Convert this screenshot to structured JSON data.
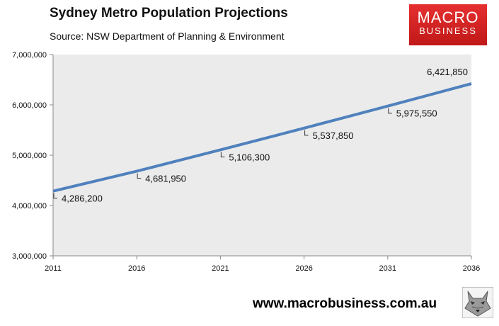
{
  "header": {
    "title": "Sydney Metro Population Projections",
    "source": "Source: NSW Department of Planning & Environment"
  },
  "logo": {
    "line1": "MACRO",
    "line2": "BUSINESS"
  },
  "footer": {
    "url": "www.macrobusiness.com.au"
  },
  "colors": {
    "line": "#4f81bd",
    "plot_bg": "#ebebeb",
    "logo": "#d42020"
  },
  "chart_data": {
    "type": "line",
    "title": "Sydney Metro Population Projections",
    "xlabel": "",
    "ylabel": "",
    "x": [
      2011,
      2016,
      2021,
      2026,
      2031,
      2036
    ],
    "x_tick_labels": [
      "2011",
      "2016",
      "2021",
      "2026",
      "2031",
      "2036"
    ],
    "ylim": [
      3000000,
      7000000
    ],
    "y_ticks": [
      3000000,
      4000000,
      5000000,
      6000000,
      7000000
    ],
    "y_tick_labels": [
      "3,000,000",
      "4,000,000",
      "5,000,000",
      "6,000,000",
      "7,000,000"
    ],
    "series": [
      {
        "name": "Sydney Metro Population",
        "values": [
          4286200,
          4681950,
          5106300,
          5537850,
          5975550,
          6421850
        ],
        "labels": [
          "4,286,200",
          "4,681,950",
          "5,106,300",
          "5,537,850",
          "5,975,550",
          "6,421,850"
        ]
      }
    ],
    "grid": false,
    "legend": "none"
  }
}
